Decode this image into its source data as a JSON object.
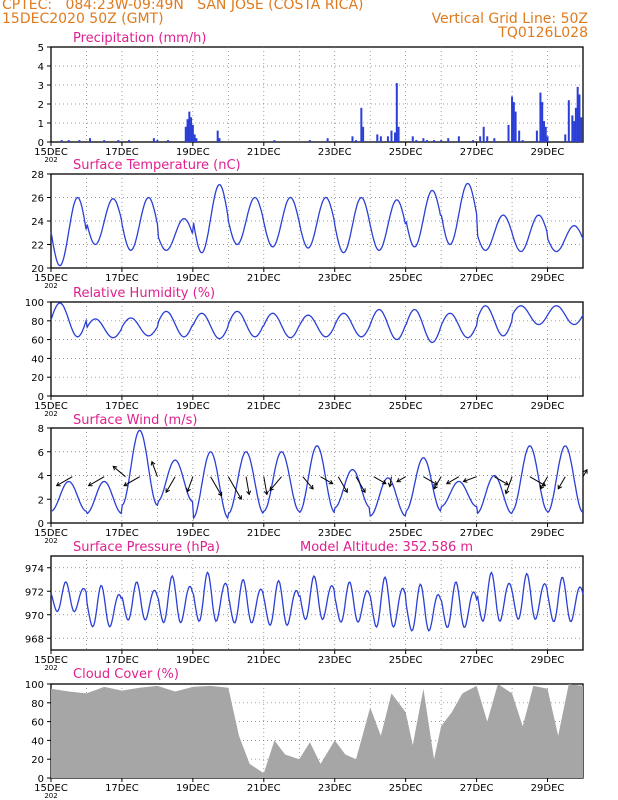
{
  "header": {
    "line1": "CPTEC:   084:23W-09:49N   SAN JOSE (COSTA RICA)",
    "line2": "15DEC2020 50Z (GMT)",
    "right1": "Vertical Grid Line: 50Z",
    "right2": "TQ0126L028"
  },
  "colors": {
    "header": "#e07a1e",
    "title": "#e0208f",
    "line": "#2b3fd6",
    "cloud": "#a6a6a6",
    "wind_arrow": "#000000"
  },
  "x_axis": {
    "tick_labels": [
      "15DEC",
      "17DEC",
      "19DEC",
      "21DEC",
      "23DEC",
      "25DEC",
      "27DEC",
      "29DEC"
    ],
    "tick_days": [
      0,
      2,
      4,
      6,
      8,
      10,
      12,
      14
    ],
    "year_fragment": "202",
    "range_days": [
      0,
      15
    ]
  },
  "chart_data": [
    {
      "id": "precip",
      "type": "bar",
      "title": "Precipitation (mm/h)",
      "ylim": [
        0,
        5
      ],
      "yticks": [
        0,
        1,
        2,
        3,
        4,
        5
      ],
      "x_days": [
        0.3,
        0.5,
        0.8,
        1.1,
        1.5,
        1.9,
        2.2,
        2.9,
        3.0,
        3.3,
        3.8,
        3.85,
        3.9,
        3.95,
        4.0,
        4.05,
        4.1,
        4.7,
        4.75,
        6.3,
        7.3,
        7.8,
        8.5,
        8.6,
        8.75,
        8.8,
        9.2,
        9.3,
        9.5,
        9.6,
        9.7,
        9.75,
        9.8,
        10.2,
        10.3,
        10.5,
        10.6,
        10.8,
        11.0,
        11.2,
        11.5,
        11.9,
        12.1,
        12.2,
        12.3,
        12.5,
        12.9,
        13.0,
        13.05,
        13.1,
        13.2,
        13.3,
        13.7,
        13.8,
        13.85,
        13.9,
        13.95,
        14.0,
        14.5,
        14.6,
        14.7,
        14.75,
        14.8,
        14.85,
        14.9,
        14.95
      ],
      "values": [
        0.1,
        0.1,
        0.1,
        0.2,
        0.1,
        0.1,
        0.1,
        0.2,
        0.1,
        0.1,
        0.8,
        1.2,
        1.6,
        1.3,
        0.9,
        0.4,
        0.2,
        0.6,
        0.2,
        0.1,
        0.1,
        0.2,
        0.3,
        0.1,
        1.8,
        0.8,
        0.4,
        0.3,
        0.3,
        0.6,
        0.5,
        3.1,
        0.8,
        0.3,
        0.1,
        0.2,
        0.1,
        0.1,
        0.1,
        0.2,
        0.3,
        0.1,
        0.3,
        0.8,
        0.3,
        0.2,
        0.9,
        2.4,
        2.1,
        1.6,
        0.6,
        0.1,
        0.6,
        2.6,
        2.1,
        1.1,
        0.8,
        0.3,
        0.4,
        2.2,
        1.4,
        1.1,
        1.8,
        2.9,
        2.5,
        1.3
      ]
    },
    {
      "id": "temp",
      "type": "line",
      "title": "Surface Temperature (nC)",
      "ylim": [
        20,
        28
      ],
      "yticks": [
        20,
        22,
        24,
        26,
        28
      ],
      "daily_max": [
        26.0,
        25.9,
        26.0,
        24.2,
        27.1,
        26.0,
        26.0,
        26.0,
        26.0,
        25.8,
        26.6,
        27.2,
        24.5,
        24.5,
        23.6
      ],
      "daily_min": [
        20.2,
        22.0,
        21.5,
        21.5,
        21.3,
        22.0,
        21.8,
        21.7,
        21.3,
        21.5,
        21.8,
        22.0,
        21.5,
        21.4,
        21.4
      ],
      "peak_hour": 18,
      "trough_hour": 6
    },
    {
      "id": "rh",
      "type": "line",
      "title": "Relative Humidity (%)",
      "ylim": [
        0,
        100
      ],
      "yticks": [
        0,
        20,
        40,
        60,
        80,
        100
      ],
      "daily_max": [
        99,
        82,
        83,
        90,
        88,
        90,
        88,
        86,
        88,
        92,
        92,
        88,
        96,
        96,
        96
      ],
      "daily_min": [
        63,
        62,
        64,
        63,
        61,
        63,
        62,
        63,
        63,
        60,
        57,
        62,
        64,
        76,
        76
      ],
      "peak_hour": 6,
      "trough_hour": 18
    },
    {
      "id": "wind",
      "type": "line",
      "title": "Surface Wind (m/s)",
      "ylim": [
        0,
        8
      ],
      "yticks": [
        0,
        2,
        4,
        6,
        8
      ],
      "daily_max": [
        3.5,
        3.5,
        7.8,
        5.3,
        6.0,
        6.0,
        6.0,
        6.5,
        4.5,
        3.8,
        5.5,
        3.5,
        4.0,
        6.5,
        6.5
      ],
      "daily_min": [
        1.0,
        0.8,
        1.5,
        1.8,
        0.4,
        0.8,
        1.0,
        0.9,
        1.3,
        0.6,
        1.0,
        1.4,
        0.8,
        1.0,
        0.9
      ],
      "peak_hour": 12,
      "trough_hour": 0,
      "arrow_y": 3.9,
      "arrow_days": [
        0.6,
        1.5,
        2.1,
        2.5,
        3.0,
        3.5,
        4.0,
        4.5,
        5.0,
        5.5,
        6.0,
        6.5,
        7.1,
        7.6,
        8.1,
        8.6,
        9.1,
        9.6,
        10.0,
        10.5,
        11.0,
        11.5,
        12.0,
        12.5,
        13.0,
        13.5,
        14.0,
        14.5,
        15.0
      ],
      "arrow_dir_deg": [
        300,
        300,
        230,
        300,
        200,
        330,
        340,
        30,
        30,
        10,
        10,
        320,
        40,
        60,
        30,
        30,
        60,
        350,
        300,
        60,
        330,
        300,
        290,
        60,
        340,
        60,
        330,
        330,
        150
      ],
      "arrow_speed": [
        3.0,
        3.0,
        2.5,
        3.0,
        2.5,
        3.0,
        2.5,
        4.0,
        5.0,
        3.0,
        3.0,
        3.0,
        2.5,
        2.0,
        3.0,
        3.0,
        2.0,
        1.0,
        1.0,
        2.5,
        2.0,
        2.0,
        2.0,
        2.5,
        3.0,
        3.0,
        2.0,
        2.0,
        0.5
      ]
    },
    {
      "id": "pres",
      "type": "line",
      "title": "Surface Pressure (hPa)",
      "annotation": "Model Altitude: 352.586 m",
      "ylim": [
        967,
        975
      ],
      "yticks": [
        968,
        970,
        972,
        974
      ],
      "semidiurnal_peaks_hours": [
        10,
        22
      ],
      "peak_values": [
        972.8,
        972.5,
        972.8,
        973.3,
        973.6,
        973.0,
        972.9,
        973.3,
        972.8,
        973.2,
        972.6,
        972.8,
        973.6,
        973.5,
        973.2
      ],
      "trough_values": [
        970.0,
        968.6,
        969.2,
        968.9,
        969.0,
        968.9,
        968.7,
        969.2,
        969.0,
        968.5,
        968.2,
        968.5,
        969.0,
        969.2,
        969.0
      ]
    },
    {
      "id": "cloud",
      "type": "area",
      "title": "Cloud Cover (%)",
      "ylim": [
        0,
        100
      ],
      "yticks": [
        0,
        20,
        40,
        60,
        80,
        100
      ],
      "x_days": [
        0,
        0.5,
        1.0,
        1.5,
        2.0,
        2.5,
        3.0,
        3.5,
        4.0,
        4.5,
        5.0,
        5.3,
        5.6,
        6.0,
        6.3,
        6.6,
        7.0,
        7.3,
        7.6,
        8.0,
        8.3,
        8.6,
        9.0,
        9.3,
        9.6,
        10.0,
        10.2,
        10.5,
        10.8,
        11.0,
        11.3,
        11.6,
        12.0,
        12.3,
        12.6,
        13.0,
        13.3,
        13.6,
        14.0,
        14.3,
        14.6,
        15.0
      ],
      "values": [
        95,
        92,
        90,
        97,
        93,
        96,
        98,
        92,
        97,
        98,
        96,
        45,
        15,
        5,
        40,
        25,
        20,
        38,
        15,
        40,
        25,
        20,
        75,
        45,
        90,
        70,
        35,
        95,
        20,
        55,
        70,
        90,
        98,
        60,
        100,
        90,
        55,
        98,
        95,
        45,
        100,
        98
      ]
    }
  ]
}
